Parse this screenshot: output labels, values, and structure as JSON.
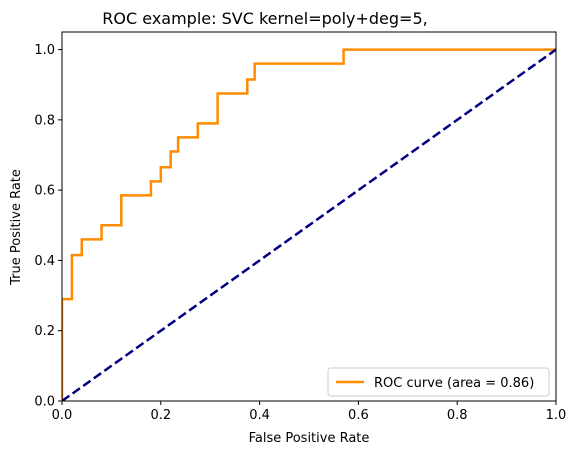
{
  "chart_data": {
    "type": "line",
    "title": "ROC example: SVC kernel=poly+deg=5,",
    "xlabel": "False Positive Rate",
    "ylabel": "True Positive Rate",
    "xlim": [
      0.0,
      1.0
    ],
    "ylim": [
      0.0,
      1.05
    ],
    "xticks": [
      "0.0",
      "0.2",
      "0.4",
      "0.6",
      "0.8",
      "1.0"
    ],
    "yticks": [
      "0.0",
      "0.2",
      "0.4",
      "0.6",
      "0.8",
      "1.0"
    ],
    "grid": false,
    "legend_position": "lower-right",
    "series": [
      {
        "name": "ROC curve (area = 0.86)",
        "color": "#ff8c00",
        "style": "solid",
        "x": [
          0.0,
          0.0,
          0.02,
          0.02,
          0.04,
          0.04,
          0.08,
          0.08,
          0.12,
          0.12,
          0.18,
          0.18,
          0.2,
          0.2,
          0.22,
          0.22,
          0.235,
          0.235,
          0.275,
          0.275,
          0.315,
          0.315,
          0.375,
          0.375,
          0.39,
          0.39,
          0.57,
          0.57,
          1.0
        ],
        "y": [
          0.0,
          0.29,
          0.29,
          0.415,
          0.415,
          0.46,
          0.46,
          0.5,
          0.5,
          0.585,
          0.585,
          0.625,
          0.625,
          0.665,
          0.665,
          0.71,
          0.71,
          0.75,
          0.75,
          0.79,
          0.79,
          0.875,
          0.875,
          0.915,
          0.915,
          0.96,
          0.96,
          1.0,
          1.0
        ]
      },
      {
        "name": "",
        "color": "#000080",
        "style": "dashed",
        "x": [
          0.0,
          1.0
        ],
        "y": [
          0.0,
          1.0
        ]
      }
    ]
  }
}
